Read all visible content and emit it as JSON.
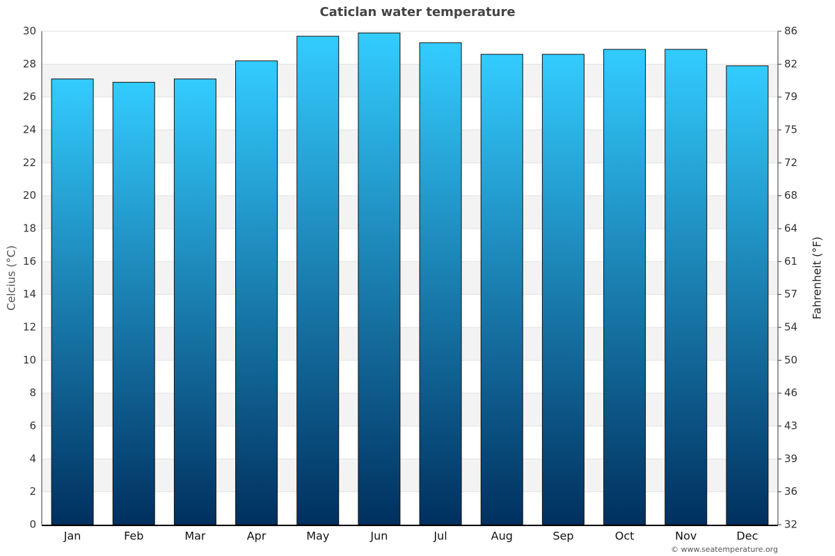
{
  "chart_data": {
    "type": "bar",
    "title": "Caticlan water temperature",
    "y_label": "Celcius (°C)",
    "y2_label": "Fahrenheit (°F)",
    "credit": "© www.seatemperature.org",
    "categories": [
      "Jan",
      "Feb",
      "Mar",
      "Apr",
      "May",
      "Jun",
      "Jul",
      "Aug",
      "Sep",
      "Oct",
      "Nov",
      "Dec"
    ],
    "values": [
      27.1,
      26.9,
      27.1,
      28.2,
      29.7,
      29.9,
      29.3,
      28.6,
      28.6,
      28.9,
      28.9,
      27.9
    ],
    "gradient": [
      "#33ccff",
      "#00305f"
    ],
    "ylim": [
      0,
      30
    ],
    "yticks": [
      0,
      2,
      4,
      6,
      8,
      10,
      12,
      14,
      16,
      18,
      20,
      22,
      24,
      26,
      28,
      30
    ],
    "y2lim": [
      32,
      86
    ],
    "y2ticks": [
      32,
      {
        "value": 35.6,
        "label": "36"
      },
      {
        "value": 39.2,
        "label": "39"
      },
      {
        "value": 42.8,
        "label": "43"
      },
      {
        "value": 46.4,
        "label": "46"
      },
      50,
      {
        "value": 53.6,
        "label": "54"
      },
      {
        "value": 57.2,
        "label": "57"
      },
      {
        "value": 60.8,
        "label": "61"
      },
      {
        "value": 64.4,
        "label": "64"
      },
      68,
      {
        "value": 71.6,
        "label": "72"
      },
      {
        "value": 75.2,
        "label": "75"
      },
      {
        "value": 78.8,
        "label": "79"
      },
      {
        "value": 82.4,
        "label": "82"
      },
      86
    ],
    "grid": true
  }
}
